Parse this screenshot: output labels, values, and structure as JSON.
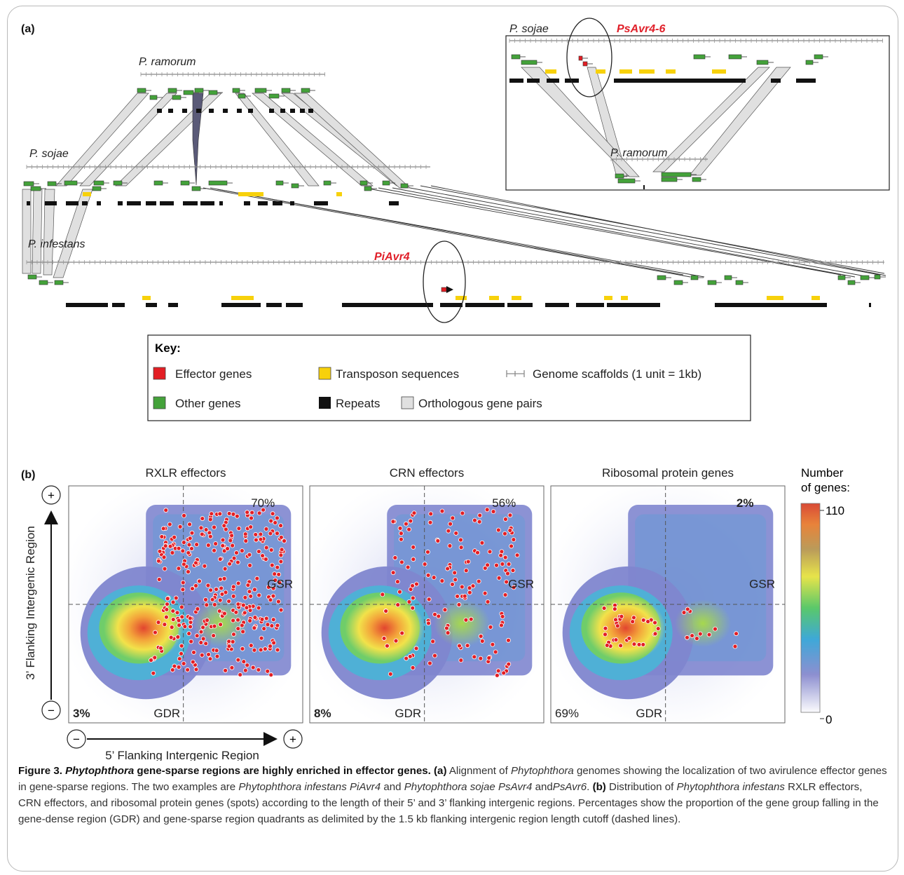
{
  "panel_a": {
    "label": "(a)",
    "species": {
      "ramorum": "P. ramorum",
      "sojae": "P. sojae",
      "infestans": "P. infestans",
      "inset_sojae": "P. sojae",
      "inset_ramorum": "P. ramorum"
    },
    "effectors": {
      "piavr4": "PiAvr4",
      "psavr46": "PsAvr4-6"
    },
    "key": {
      "title": "Key:",
      "items": [
        "Effector genes",
        "Transposon sequences",
        "Genome scaffolds (1 unit = 1kb)",
        "Other genes",
        "Repeats",
        "Orthologous gene pairs"
      ]
    },
    "colors": {
      "effector": "#e31e24",
      "other_gene": "#44a23a",
      "transposon": "#f7d10b",
      "repeat": "#111111",
      "ortholog": "#e0e0e0",
      "paralog_link": "#5a5a78"
    }
  },
  "panel_b": {
    "label": "(b)",
    "plots": [
      {
        "title": "RXLR effectors",
        "gsr_pct": "70%",
        "gdr_pct": "3%",
        "gsr_bold": false,
        "gdr_bold": true
      },
      {
        "title": "CRN effectors",
        "gsr_pct": "56%",
        "gdr_pct": "8%",
        "gsr_bold": false,
        "gdr_bold": true
      },
      {
        "title": "Ribosomal protein genes",
        "gsr_pct": "2%",
        "gdr_pct": "69%",
        "gsr_bold": true,
        "gdr_bold": false
      }
    ],
    "quadrant_labels": {
      "gsr": "GSR",
      "gdr": "GDR"
    },
    "y_axis": "3’ Flanking Intergenic Region",
    "x_axis": "5’ Flanking Intergenic Region",
    "plus": "+",
    "minus": "−",
    "colorbar": {
      "title_line1": "Number",
      "title_line2": "of genes:",
      "max": "110",
      "min": "0"
    }
  },
  "chart_data": {
    "type": "heatmap",
    "colorscale_range": [
      0,
      110
    ],
    "series": [
      {
        "name": "RXLR effectors",
        "GSR": 70,
        "GDR": 3
      },
      {
        "name": "CRN effectors",
        "GSR": 56,
        "GDR": 8
      },
      {
        "name": "Ribosomal protein genes",
        "GSR": 2,
        "GDR": 69
      }
    ]
  },
  "caption": {
    "fig": "Figure 3.",
    "genus": "Phytophthora",
    "title_rest": "gene-sparse regions are highly enriched in effector genes.",
    "a_lbl": "(a)",
    "t1": "Alignment of",
    "t2": "genomes showing the localization of two avirulence effector genes in gene-sparse regions. The two examples are",
    "t3": "Phytophthora infestans PiAvr4",
    "t4": "and",
    "t5": "Phytophthora sojae PsAvr4",
    "t6": "and",
    "t7": "PsAvr6",
    "t8": ".",
    "b_lbl": "(b)",
    "t9": "Distribution of",
    "t10": "Phytophthora infestans",
    "t11": "RXLR effectors, CRN effectors, and ribosomal protein genes (spots) according to the length of their 5’ and 3’ flanking intergenic regions. Percentages show the proportion of the gene group falling in the gene-dense region (GDR) and gene-sparse region quadrants as delimited by the 1.5 kb flanking intergenic region length cutoff (dashed lines)."
  }
}
